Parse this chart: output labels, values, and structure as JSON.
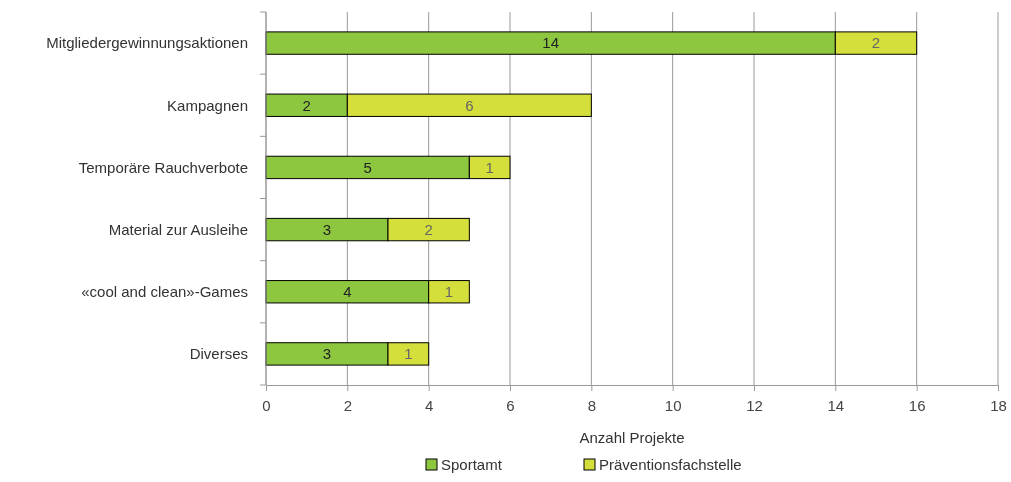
{
  "chart_data": {
    "type": "bar",
    "orientation": "horizontal",
    "stacked": true,
    "xlabel": "Anzahl Projekte",
    "categories": [
      "Mitgliedergewinnungsaktionen",
      "Kampagnen",
      "Temporäre Rauchverbote",
      "Material zur Ausleihe",
      "«cool and clean»-Games",
      "Diverses"
    ],
    "series": [
      {
        "name": "Sportamt",
        "color": "#8dc63f",
        "values": [
          14,
          2,
          5,
          3,
          4,
          3
        ]
      },
      {
        "name": "Präventionsfachstelle",
        "color": "#d4df3c",
        "values": [
          2,
          6,
          1,
          2,
          1,
          1
        ]
      }
    ],
    "xlim": [
      0,
      18
    ],
    "xticks": [
      0,
      2,
      4,
      6,
      8,
      10,
      12,
      14,
      16,
      18
    ],
    "grid": "x",
    "legend": "bottom",
    "data_labels": true
  }
}
